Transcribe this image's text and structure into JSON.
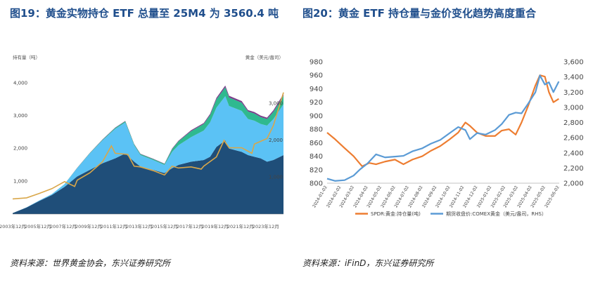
{
  "figure1": {
    "title": "图19：黄金实物持仓 ETF 总量至 25M4 为 3560.4 吨",
    "source": "资料来源：世界黄金协会，东兴证券研究所",
    "left_axis_label": "持有量（吨）",
    "right_axis_label": "黄金（美元/盎司）"
  },
  "figure2": {
    "title": "图20：黄金 ETF 持仓量与金价变化趋势高度重合",
    "source": "资料来源：iFinD，东兴证券研究所"
  },
  "chart_data": [
    {
      "type": "area",
      "title": "图19：黄金实物持仓 ETF 总量至 25M4 为 3560.4 吨",
      "ylabel_left": "持有量（吨）",
      "ylabel_right": "黄金（美元/盎司）",
      "ylim_left": [
        0,
        4500
      ],
      "ylim_right": [
        0,
        4000
      ],
      "yticks_left": [
        "1,000",
        "2,000",
        "3,000",
        "4,000"
      ],
      "yticks_right": [
        "1,000",
        "2,000",
        "3,000"
      ],
      "x_tick_labels": [
        "2003年12月",
        "2005年12月",
        "2007年12月",
        "2009年12月",
        "2011年12月",
        "2013年12月",
        "2015年12月",
        "2017年12月",
        "2019年12月",
        "2021年12月",
        "2023年12月"
      ],
      "x": [
        2003.9,
        2005,
        2006,
        2007,
        2008,
        2009,
        2010,
        2011,
        2012,
        2012.8,
        2013.5,
        2014,
        2015,
        2015.9,
        2016.5,
        2017,
        2018,
        2019,
        2019.5,
        2020,
        2020.7,
        2021,
        2022,
        2022.5,
        2023,
        2023.5,
        2024,
        2024.5,
        2025.3
      ],
      "series": [
        {
          "values": [
            30,
            200,
            400,
            580,
            830,
            1150,
            1350,
            1550,
            1700,
            1850,
            1600,
            1450,
            1350,
            1250,
            1400,
            1500,
            1600,
            1650,
            1750,
            2050,
            2250,
            2000,
            1900,
            1800,
            1750,
            1700,
            1600,
            1650,
            1800
          ]
        },
        {
          "values": [
            0,
            5,
            15,
            30,
            80,
            250,
            500,
            700,
            900,
            950,
            500,
            350,
            300,
            250,
            500,
            600,
            750,
            900,
            1050,
            1200,
            1350,
            1300,
            1250,
            1100,
            1100,
            1050,
            1100,
            1250,
            1550
          ]
        },
        {
          "values": [
            0,
            0,
            0,
            0,
            5,
            10,
            15,
            20,
            30,
            35,
            30,
            30,
            30,
            30,
            80,
            120,
            180,
            200,
            220,
            250,
            270,
            260,
            250,
            230,
            220,
            210,
            200,
            220,
            260
          ]
        },
        {
          "values": [
            0,
            0,
            0,
            0,
            0,
            5,
            5,
            10,
            10,
            10,
            10,
            10,
            10,
            10,
            20,
            20,
            30,
            30,
            40,
            50,
            55,
            50,
            50,
            45,
            45,
            45,
            45,
            50,
            60
          ]
        }
      ],
      "gold_price": {
        "x": [
          2003.9,
          2005,
          2006,
          2007,
          2008,
          2008.8,
          2009,
          2010,
          2011,
          2011.7,
          2012,
          2013,
          2013.5,
          2014,
          2015,
          2015.9,
          2016.5,
          2017,
          2018,
          2018.8,
          2019,
          2020,
          2020.6,
          2021,
          2022,
          2022.8,
          2023,
          2024,
          2024.5,
          2025.3
        ],
        "values": [
          410,
          440,
          560,
          690,
          880,
          750,
          920,
          1120,
          1420,
          1850,
          1650,
          1620,
          1300,
          1280,
          1180,
          1060,
          1300,
          1250,
          1280,
          1220,
          1300,
          1550,
          2000,
          1800,
          1800,
          1650,
          1900,
          2050,
          2400,
          3300
        ]
      }
    },
    {
      "type": "line",
      "title": "图20：黄金 ETF 持仓量与金价变化趋势高度重合",
      "ylim_left": [
        800,
        980
      ],
      "ylim_right": [
        2000,
        3600
      ],
      "yticks_left": [
        800,
        820,
        840,
        860,
        880,
        900,
        920,
        940,
        960,
        980
      ],
      "yticks_right": [
        "2,000",
        "2,200",
        "2,400",
        "2,600",
        "2,800",
        "3,000",
        "3,200",
        "3,400",
        "3,600"
      ],
      "x_tick_labels": [
        "2024-01-02",
        "2024-02-02",
        "2024-03-02",
        "2024-04-02",
        "2024-05-02",
        "2024-06-02",
        "2024-07-02",
        "2024-08-02",
        "2024-09-02",
        "2024-10-02",
        "2024-11-02",
        "2024-12-02",
        "2025-01-02",
        "2025-02-02",
        "2025-03-02",
        "2025-04-02",
        "2025-05-02",
        "2025-06-02"
      ],
      "legend": [
        "SPDR:黄金:持仓量(吨)",
        "期货收盘价:COMEX黄金（美元/盎司，RHS）"
      ],
      "colors": [
        "#ed7d31",
        "#5b9bd5"
      ],
      "series": [
        {
          "name": "SPDR:黄金:持仓量(吨)",
          "x": [
            "2024-01-02",
            "2024-01-20",
            "2024-02-10",
            "2024-03-01",
            "2024-03-20",
            "2024-04-05",
            "2024-04-20",
            "2024-05-10",
            "2024-06-01",
            "2024-06-20",
            "2024-07-10",
            "2024-08-01",
            "2024-08-20",
            "2024-09-10",
            "2024-10-01",
            "2024-10-20",
            "2024-11-05",
            "2024-11-15",
            "2024-12-01",
            "2024-12-20",
            "2025-01-10",
            "2025-01-25",
            "2025-02-10",
            "2025-02-25",
            "2025-03-10",
            "2025-03-25",
            "2025-04-10",
            "2025-04-20",
            "2025-05-01",
            "2025-05-10",
            "2025-05-20",
            "2025-06-01"
          ],
          "values": [
            875,
            865,
            852,
            840,
            825,
            830,
            828,
            832,
            835,
            828,
            835,
            840,
            848,
            855,
            865,
            875,
            890,
            885,
            875,
            870,
            870,
            878,
            880,
            872,
            890,
            915,
            945,
            960,
            958,
            935,
            920,
            925
          ]
        },
        {
          "name": "期货收盘价:COMEX黄金（美元/盎司，RHS）",
          "x": [
            "2024-01-02",
            "2024-01-20",
            "2024-02-10",
            "2024-03-01",
            "2024-03-15",
            "2024-04-01",
            "2024-04-20",
            "2024-05-10",
            "2024-06-01",
            "2024-06-20",
            "2024-07-10",
            "2024-08-01",
            "2024-08-20",
            "2024-09-10",
            "2024-10-01",
            "2024-10-20",
            "2024-11-05",
            "2024-11-15",
            "2024-12-01",
            "2024-12-20",
            "2025-01-10",
            "2025-01-25",
            "2025-02-10",
            "2025-02-25",
            "2025-03-10",
            "2025-03-25",
            "2025-04-10",
            "2025-04-20",
            "2025-05-01",
            "2025-05-10",
            "2025-05-20",
            "2025-06-01"
          ],
          "values": [
            2060,
            2030,
            2040,
            2100,
            2180,
            2260,
            2380,
            2340,
            2350,
            2360,
            2420,
            2460,
            2520,
            2570,
            2660,
            2740,
            2700,
            2580,
            2660,
            2640,
            2700,
            2780,
            2900,
            2930,
            2920,
            3050,
            3200,
            3420,
            3300,
            3330,
            3200,
            3340
          ]
        }
      ]
    }
  ]
}
